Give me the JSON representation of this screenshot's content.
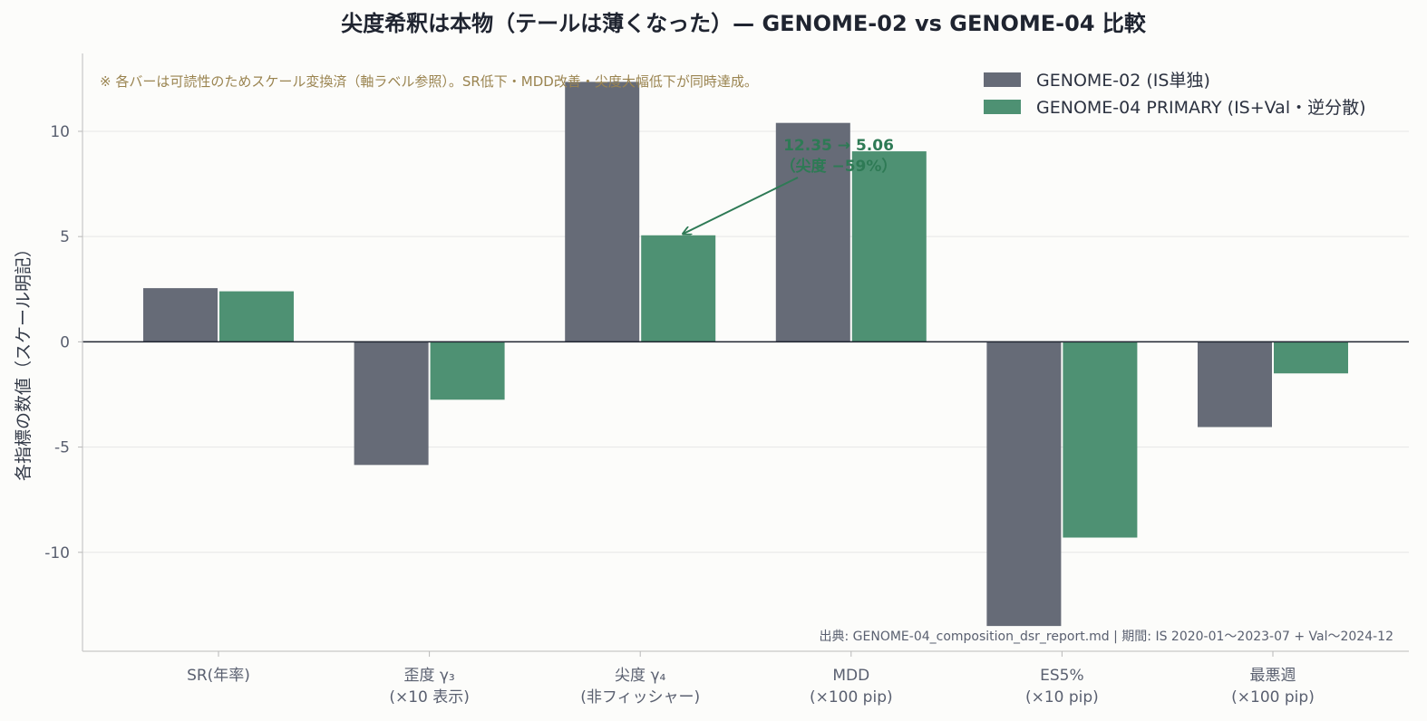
{
  "chart_data": {
    "type": "bar",
    "title": "尖度希釈は本物（テールは薄くなった）— GENOME-02 vs GENOME-04 比較",
    "ylabel": "各指標の数値（スケール明記）",
    "xlabel": "",
    "categories": [
      [
        "SR(年率)"
      ],
      [
        "歪度 γ₃",
        "(×10 表示)"
      ],
      [
        "尖度 γ₄",
        "(非フィッシャー)"
      ],
      [
        "MDD",
        "(×100 pip)"
      ],
      [
        "ES5%",
        "(×10 pip)"
      ],
      [
        "最悪週",
        "(×100 pip)"
      ]
    ],
    "series": [
      {
        "name": "GENOME-02 (IS単独)",
        "color": "#666b77",
        "values": [
          2.55,
          -5.85,
          12.35,
          10.4,
          -13.5,
          -4.05
        ]
      },
      {
        "name": "GENOME-04 PRIMARY (IS+Val・逆分散)",
        "color": "#4e9173",
        "values": [
          2.4,
          -2.75,
          5.06,
          9.05,
          -9.3,
          -1.5
        ]
      }
    ],
    "ylim": [
      -14.7,
      13.7
    ],
    "yticks": [
      -10,
      -5,
      0,
      5,
      10
    ],
    "ytick_labels": [
      "-10",
      "-5",
      "0",
      "5",
      "10"
    ],
    "grid": "horizontal",
    "legend_position": "top-right",
    "note": "※ 各バーは可読性のためスケール変換済（軸ラベル参照）。SR低下・MDD改善・尖度大幅低下が同時達成。",
    "annotation": {
      "lines": [
        "12.35 → 5.06",
        "（尖度 −59%）"
      ],
      "target_category": 2,
      "target_series": 1,
      "target_value": 5.06
    },
    "source": "出典: GENOME-04_composition_dsr_report.md | 期間: IS 2020-01〜2023-07 + Val〜2024-12",
    "colors": {
      "zero_line": "#1f2430",
      "grid": "#e6e6e6",
      "annotation": "#2e7a55"
    }
  }
}
